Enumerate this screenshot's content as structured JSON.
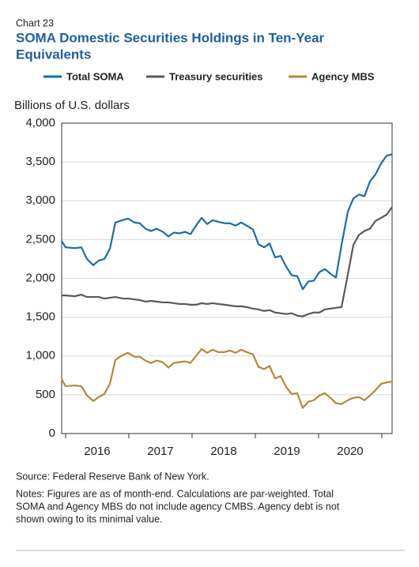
{
  "chart_data": {
    "type": "line",
    "label": "Chart 23",
    "title": [
      "SOMA Domestic Securities Holdings in Ten-Year",
      "Equivalents"
    ],
    "ylabel": "Billions of U.S. dollars",
    "source": "Source: Federal Reserve Bank of New York.",
    "notes": [
      "Notes: Figures are as of month-end. Calculations are par-weighted. Total",
      "SOMA and Agency MBS do not include agency CMBS. Agency debt is not",
      "shown owing to its minimal value."
    ],
    "x": [
      2015.938,
      2016,
      2016.15,
      2016.25,
      2016.338,
      2016.438,
      2016.525,
      2016.613,
      2016.7,
      2016.788,
      2016.9,
      2016.988,
      2017.088,
      2017.175,
      2017.263,
      2017.35,
      2017.438,
      2017.538,
      2017.625,
      2017.713,
      2017.8,
      2017.888,
      2017.975,
      2018.063,
      2018.15,
      2018.238,
      2018.325,
      2018.413,
      2018.513,
      2018.6,
      2018.688,
      2018.775,
      2018.863,
      2018.963,
      2019.05,
      2019.138,
      2019.225,
      2019.313,
      2019.4,
      2019.488,
      2019.575,
      2019.663,
      2019.75,
      2019.838,
      2019.925,
      2020.013,
      2020.1,
      2020.188,
      2020.275,
      2020.363,
      2020.463,
      2020.55,
      2020.638,
      2020.725,
      2020.813,
      2020.9,
      2020.988,
      2021.075,
      2021.163
    ],
    "series": [
      {
        "name": "Total SOMA",
        "color": "#1a6ea6",
        "values": [
          2480,
          2400,
          2390,
          2400,
          2250,
          2170,
          2230,
          2250,
          2380,
          2720,
          2750,
          2770,
          2720,
          2710,
          2640,
          2610,
          2640,
          2600,
          2540,
          2590,
          2580,
          2600,
          2570,
          2680,
          2780,
          2700,
          2750,
          2730,
          2710,
          2710,
          2680,
          2720,
          2680,
          2630,
          2440,
          2400,
          2450,
          2270,
          2290,
          2150,
          2040,
          2030,
          1860,
          1960,
          1970,
          2080,
          2120,
          2060,
          2010,
          2430,
          2860,
          3030,
          3080,
          3060,
          3250,
          3340,
          3480,
          3580,
          3600
        ]
      },
      {
        "name": "Treasury securities",
        "color": "#5a5a55",
        "values": [
          1780,
          1780,
          1770,
          1790,
          1760,
          1760,
          1760,
          1740,
          1750,
          1760,
          1740,
          1740,
          1730,
          1720,
          1700,
          1710,
          1700,
          1690,
          1690,
          1680,
          1670,
          1670,
          1660,
          1660,
          1680,
          1670,
          1680,
          1670,
          1660,
          1650,
          1640,
          1640,
          1630,
          1610,
          1600,
          1580,
          1590,
          1560,
          1550,
          1540,
          1550,
          1520,
          1510,
          1540,
          1560,
          1560,
          1600,
          1610,
          1620,
          1630,
          2050,
          2430,
          2560,
          2610,
          2640,
          2740,
          2780,
          2820,
          2920
        ]
      },
      {
        "name": "Agency MBS",
        "color": "#b58a3a",
        "values": [
          700,
          610,
          620,
          610,
          490,
          420,
          470,
          510,
          640,
          950,
          1010,
          1040,
          990,
          990,
          940,
          910,
          940,
          920,
          850,
          910,
          920,
          930,
          910,
          1000,
          1090,
          1040,
          1080,
          1050,
          1050,
          1070,
          1040,
          1080,
          1050,
          1020,
          860,
          830,
          870,
          710,
          740,
          600,
          510,
          520,
          330,
          410,
          430,
          490,
          520,
          460,
          390,
          380,
          430,
          460,
          470,
          430,
          490,
          560,
          640,
          660,
          670
        ]
      }
    ],
    "xlim": [
      2015.938,
      2021.163
    ],
    "xticks": [
      {
        "value": 2016.5,
        "label": "2016"
      },
      {
        "value": 2017.5,
        "label": "2017"
      },
      {
        "value": 2018.5,
        "label": "2018"
      },
      {
        "value": 2019.5,
        "label": "2019"
      },
      {
        "value": 2020.5,
        "label": "2020"
      }
    ],
    "xticks_minor": [
      2016,
      2017,
      2018,
      2019,
      2020,
      2021
    ],
    "ylim": [
      0,
      4000
    ],
    "yticks": [
      0,
      {
        "value": 500,
        "label": "500"
      },
      {
        "value": 1000,
        "label": "1,000"
      },
      {
        "value": 1500,
        "label": "1,500"
      },
      {
        "value": 2000,
        "label": "2,000"
      },
      {
        "value": 2500,
        "label": "2,500"
      },
      {
        "value": 3000,
        "label": "3,000"
      },
      {
        "value": 3500,
        "label": "3,500"
      },
      {
        "value": 4000,
        "label": "4,000"
      }
    ],
    "grid": true
  }
}
